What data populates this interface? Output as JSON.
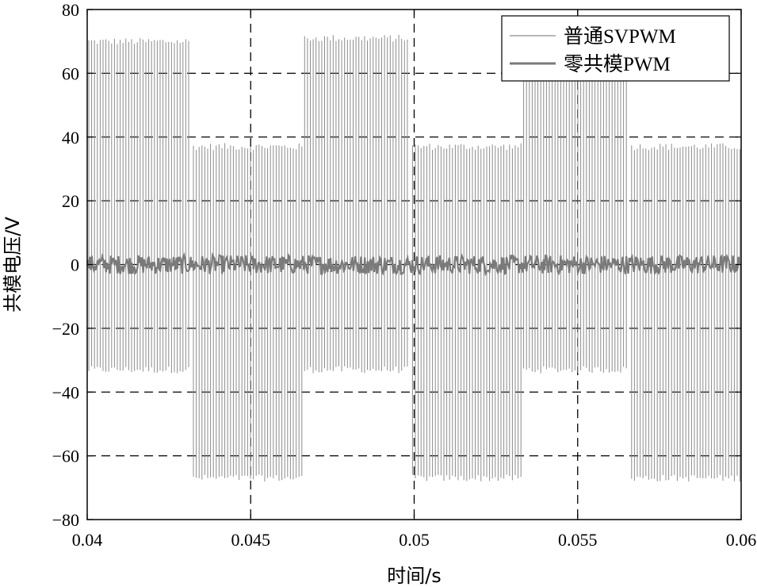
{
  "chart_data": {
    "type": "line",
    "title": "",
    "xlabel": "时间/s",
    "ylabel": "共模电压/V",
    "xlim": [
      0.04,
      0.06
    ],
    "ylim": [
      -80,
      80
    ],
    "x_ticks": [
      "0.04",
      "0.045",
      "0.05",
      "0.055",
      "0.06"
    ],
    "x_tick_values": [
      0.04,
      0.045,
      0.05,
      0.055,
      0.06
    ],
    "y_ticks": [
      "80",
      "60",
      "40",
      "20",
      "0",
      "−20",
      "−40",
      "−60",
      "−80"
    ],
    "y_tick_values": [
      80,
      60,
      40,
      20,
      0,
      -20,
      -40,
      -60,
      -80
    ],
    "grid": true,
    "legend_position": "top-right",
    "series": [
      {
        "name": "普通SVPWM",
        "color": "#8c8c8c",
        "waveform": "switching",
        "segments": [
          {
            "x_start": 0.04,
            "x_end": 0.0432,
            "max": 70,
            "min": -33
          },
          {
            "x_start": 0.0432,
            "x_end": 0.0466,
            "max": 37,
            "min": -67
          },
          {
            "x_start": 0.0466,
            "x_end": 0.0499,
            "max": 71,
            "min": -33
          },
          {
            "x_start": 0.0499,
            "x_end": 0.0533,
            "max": 37,
            "min": -67
          },
          {
            "x_start": 0.0533,
            "x_end": 0.0566,
            "max": 70,
            "min": -33
          },
          {
            "x_start": 0.0566,
            "x_end": 0.06,
            "max": 37,
            "min": -67
          }
        ]
      },
      {
        "name": "零共模PWM",
        "color": "#7a7a7a",
        "waveform": "noise",
        "amplitude": 3,
        "mean": 0
      }
    ]
  }
}
